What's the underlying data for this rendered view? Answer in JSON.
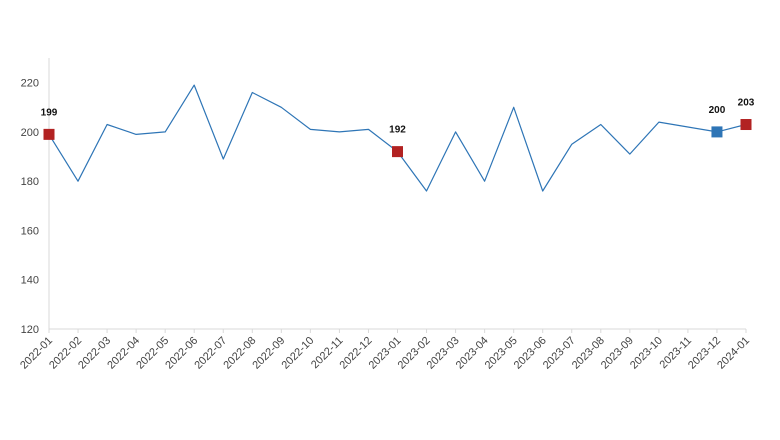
{
  "chart_data": {
    "type": "line",
    "title": "",
    "xlabel": "",
    "ylabel": "",
    "ylim": [
      120,
      230
    ],
    "yticks": [
      120,
      140,
      160,
      180,
      200,
      220
    ],
    "grid": false,
    "legend": "none",
    "categories": [
      "2022-01",
      "2022-02",
      "2022-03",
      "2022-04",
      "2022-05",
      "2022-06",
      "2022-07",
      "2022-08",
      "2022-09",
      "2022-10",
      "2022-11",
      "2022-12",
      "2023-01",
      "2023-02",
      "2023-03",
      "2023-04",
      "2023-05",
      "2023-06",
      "2023-07",
      "2023-08",
      "2023-09",
      "2023-10",
      "2023-11",
      "2023-12",
      "2024-01"
    ],
    "series": [
      {
        "values": [
          199,
          180,
          203,
          199,
          200,
          219,
          189,
          216,
          210,
          201,
          200,
          201,
          192,
          176,
          200,
          180,
          210,
          176,
          195,
          203,
          191,
          204,
          202,
          200,
          203
        ],
        "color": "#2e75b6"
      }
    ],
    "highlights": [
      {
        "category": "2022-01",
        "value": 199,
        "label": "199",
        "color": "#b22222"
      },
      {
        "category": "2023-01",
        "value": 192,
        "label": "192",
        "color": "#b22222"
      },
      {
        "category": "2023-12",
        "value": 200,
        "label": "200",
        "color": "#2e75b6"
      },
      {
        "category": "2024-01",
        "value": 203,
        "label": "203",
        "color": "#b22222"
      }
    ],
    "axis_color": "#d9d9d9"
  }
}
